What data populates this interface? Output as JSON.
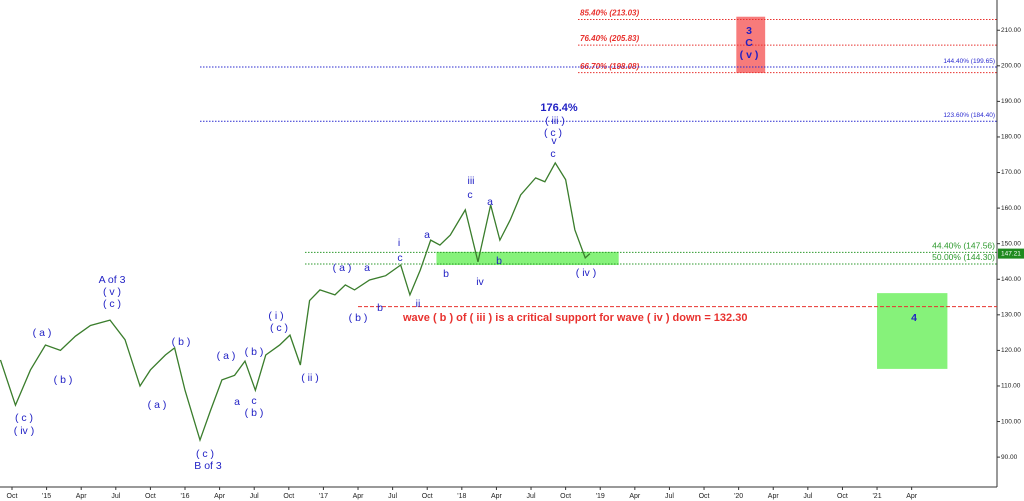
{
  "chart_data": {
    "type": "line",
    "x": [
      -1.0,
      0.3,
      1.6,
      2.9,
      4.2,
      5.5,
      6.8,
      8.5,
      9.8,
      11.1,
      12.0,
      13.3,
      14.1,
      15.0,
      16.3,
      17.2,
      18.2,
      19.3,
      20.2,
      21.1,
      22.0,
      23.2,
      24.1,
      25.0,
      25.8,
      26.7,
      28.0,
      28.9,
      29.7,
      31.0,
      32.4,
      33.7,
      34.5,
      35.4,
      36.3,
      37.1,
      38.0,
      39.3,
      40.4,
      41.5,
      42.3,
      43.2,
      44.1,
      45.4,
      46.2,
      47.1,
      48.0,
      48.8,
      49.7,
      50.1
    ],
    "series": [
      {
        "color": "#3a7d2c",
        "values": [
          117.3,
          104.6,
          114.5,
          121.5,
          120,
          124,
          127,
          128.5,
          123,
          110,
          114.5,
          118.7,
          120.7,
          108.8,
          94.8,
          103,
          111.7,
          113,
          117,
          108.8,
          118.7,
          121.5,
          124.3,
          115.9,
          134,
          137,
          135.6,
          138.4,
          137,
          139.8,
          141,
          144,
          135.6,
          142.6,
          151,
          149.6,
          152.4,
          159.5,
          144.9,
          160.9,
          151,
          156.7,
          163.7,
          168.5,
          167.4,
          172.7,
          168,
          153.9,
          146,
          147.21
        ]
      }
    ],
    "xlim": [
      -1.04,
      85.4
    ],
    "ylim": [
      81.6,
      218.5
    ],
    "xticks": [
      {
        "value": 0,
        "label": "Oct"
      },
      {
        "value": 3,
        "label": "'15"
      },
      {
        "value": 6,
        "label": "Apr"
      },
      {
        "value": 9,
        "label": "Jul"
      },
      {
        "value": 12,
        "label": "Oct"
      },
      {
        "value": 15,
        "label": "'16"
      },
      {
        "value": 18,
        "label": "Apr"
      },
      {
        "value": 21,
        "label": "Jul"
      },
      {
        "value": 24,
        "label": "Oct"
      },
      {
        "value": 27,
        "label": "'17"
      },
      {
        "value": 30,
        "label": "Apr"
      },
      {
        "value": 33,
        "label": "Jul"
      },
      {
        "value": 36,
        "label": "Oct"
      },
      {
        "value": 39,
        "label": "'18"
      },
      {
        "value": 42,
        "label": "Apr"
      },
      {
        "value": 45,
        "label": "Jul"
      },
      {
        "value": 48,
        "label": "Oct"
      },
      {
        "value": 51,
        "label": "'19"
      },
      {
        "value": 54,
        "label": "Apr"
      },
      {
        "value": 57,
        "label": "Jul"
      },
      {
        "value": 60,
        "label": "Oct"
      },
      {
        "value": 63,
        "label": "'20"
      },
      {
        "value": 66,
        "label": "Apr"
      },
      {
        "value": 69,
        "label": "Jul"
      },
      {
        "value": 72,
        "label": "Oct"
      },
      {
        "value": 75,
        "label": "'21"
      },
      {
        "value": 78,
        "label": "Apr"
      }
    ],
    "yticks": [
      {
        "value": 90,
        "label": "90.00"
      },
      {
        "value": 100,
        "label": "100.00"
      },
      {
        "value": 110,
        "label": "110.00"
      },
      {
        "value": 120,
        "label": "120.00"
      },
      {
        "value": 130,
        "label": "130.00"
      },
      {
        "value": 140,
        "label": "140.00"
      },
      {
        "value": 150,
        "label": "150.00"
      },
      {
        "value": 160,
        "label": "160.00"
      },
      {
        "value": 170,
        "label": "170.00"
      },
      {
        "value": 180,
        "label": "180.00"
      },
      {
        "value": 190,
        "label": "190.00"
      },
      {
        "value": 200,
        "label": "200.00"
      },
      {
        "value": 210,
        "label": "210.00"
      }
    ],
    "levels": [
      {
        "value": 213.03,
        "label": "85.40% (213.03)",
        "color": "#e8322f"
      },
      {
        "value": 205.83,
        "label": "76.40% (205.83)",
        "color": "#e8322f"
      },
      {
        "value": 198.08,
        "label": "66.70% (198.08)",
        "color": "#e8322f"
      },
      {
        "value": 199.65,
        "label": "144.40% (199.65)",
        "color": "#2b2bd0"
      },
      {
        "value": 184.4,
        "label": "123.60% (184.40)",
        "color": "#2b2bd0"
      },
      {
        "value": 147.56,
        "label": "44.40% (147.56)",
        "color": "#2e9a2e"
      },
      {
        "value": 144.3,
        "label": "50.00% (144.30)",
        "color": "#2e9a2e"
      },
      {
        "value": 132.3,
        "color": "#e8322f"
      }
    ],
    "zones": [
      {
        "x": [
          62.8,
          65.3
        ],
        "y": [
          198.0,
          213.8
        ],
        "color": "#f77b7b"
      },
      {
        "x": [
          36.8,
          52.6
        ],
        "y": [
          144.0,
          147.7
        ],
        "color": "#86f27a"
      },
      {
        "x": [
          75.0,
          81.1
        ],
        "y": [
          114.8,
          136.1
        ],
        "color": "#86f27a"
      }
    ],
    "last_price": {
      "value": 147.21,
      "label": "147.21"
    },
    "annotations": [
      "( c )",
      "( iv )",
      "( a )",
      "( b )",
      "A of 3",
      "( v )",
      "( c )",
      "( a )",
      "( b )",
      "( c )",
      "B of 3",
      "( a )",
      "( b )",
      "a",
      "c",
      "( b )",
      "( i )",
      "( c )",
      "( ii )",
      "( a )",
      "a",
      "( b )",
      "b",
      "i",
      "c",
      "ii",
      "a",
      "b",
      "iii",
      "c",
      "a",
      "iv",
      "b",
      "176.4%",
      "( iii )",
      "( c )",
      "v",
      "c",
      "( iv )",
      "3",
      "C",
      "( v )",
      "4",
      "wave ( b ) of ( iii ) is a critical support for wave ( iv ) down  = 132.30"
    ]
  }
}
